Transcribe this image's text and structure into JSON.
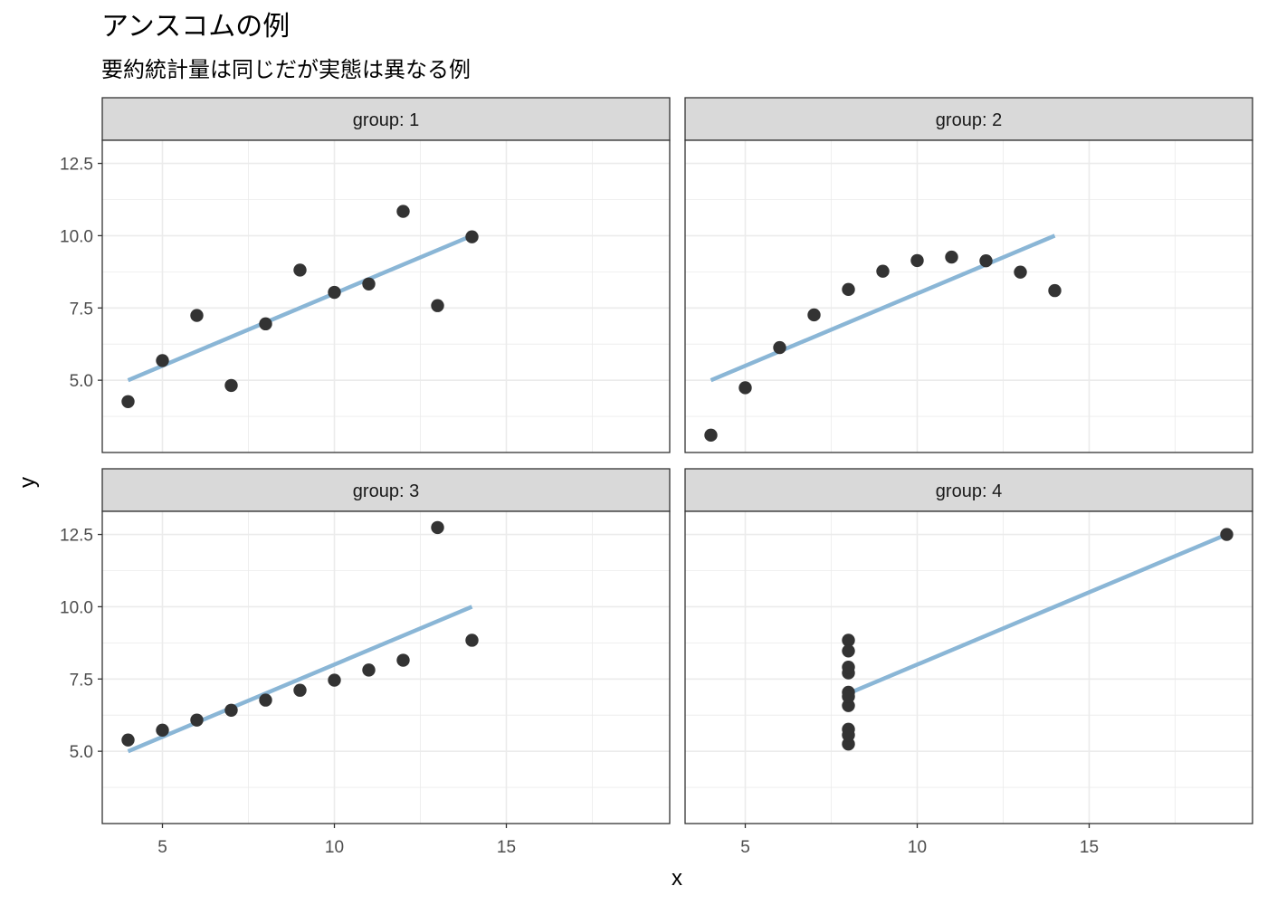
{
  "chart_data": {
    "type": "scatter",
    "title": "アンスコムの例",
    "subtitle": "要約統計量は同じだが実態は異なる例",
    "xlabel": "x",
    "ylabel": "y",
    "xlim": [
      3.25,
      19.75
    ],
    "ylim": [
      2.5,
      13.3
    ],
    "x_ticks": [
      5,
      10,
      15
    ],
    "y_ticks": [
      5.0,
      7.5,
      10.0,
      12.5
    ],
    "x_tick_labels": [
      "5",
      "10",
      "15"
    ],
    "y_tick_labels": [
      "5.0",
      "7.5",
      "10.0",
      "12.5"
    ],
    "grid": true,
    "point_color": "#333333",
    "line_color": "#8ab6d6",
    "strip_fill": "#d9d9d9",
    "panels": [
      {
        "label": "group: 1",
        "points": [
          [
            4,
            4.26
          ],
          [
            5,
            5.68
          ],
          [
            6,
            7.24
          ],
          [
            7,
            4.82
          ],
          [
            8,
            6.95
          ],
          [
            9,
            8.81
          ],
          [
            10,
            8.04
          ],
          [
            11,
            8.33
          ],
          [
            12,
            10.84
          ],
          [
            13,
            7.58
          ],
          [
            14,
            9.96
          ]
        ],
        "fit": [
          [
            4,
            5.0
          ],
          [
            14,
            10.0
          ]
        ]
      },
      {
        "label": "group: 2",
        "points": [
          [
            4,
            3.1
          ],
          [
            5,
            4.74
          ],
          [
            6,
            6.13
          ],
          [
            7,
            7.26
          ],
          [
            8,
            8.14
          ],
          [
            9,
            8.77
          ],
          [
            10,
            9.14
          ],
          [
            11,
            9.26
          ],
          [
            12,
            9.13
          ],
          [
            13,
            8.74
          ],
          [
            14,
            8.1
          ]
        ],
        "fit": [
          [
            4,
            5.0
          ],
          [
            14,
            10.0
          ]
        ]
      },
      {
        "label": "group: 3",
        "points": [
          [
            4,
            5.39
          ],
          [
            5,
            5.73
          ],
          [
            6,
            6.08
          ],
          [
            7,
            6.42
          ],
          [
            8,
            6.77
          ],
          [
            9,
            7.11
          ],
          [
            10,
            7.46
          ],
          [
            11,
            7.81
          ],
          [
            12,
            8.15
          ],
          [
            13,
            12.74
          ],
          [
            14,
            8.84
          ]
        ],
        "fit": [
          [
            4,
            5.0
          ],
          [
            14,
            10.0
          ]
        ]
      },
      {
        "label": "group: 4",
        "points": [
          [
            8,
            6.58
          ],
          [
            8,
            5.76
          ],
          [
            8,
            7.71
          ],
          [
            8,
            8.84
          ],
          [
            8,
            8.47
          ],
          [
            8,
            7.04
          ],
          [
            8,
            5.25
          ],
          [
            19,
            12.5
          ],
          [
            8,
            5.56
          ],
          [
            8,
            7.91
          ],
          [
            8,
            6.89
          ]
        ],
        "fit": [
          [
            8,
            7.0
          ],
          [
            19,
            12.5
          ]
        ]
      }
    ]
  }
}
